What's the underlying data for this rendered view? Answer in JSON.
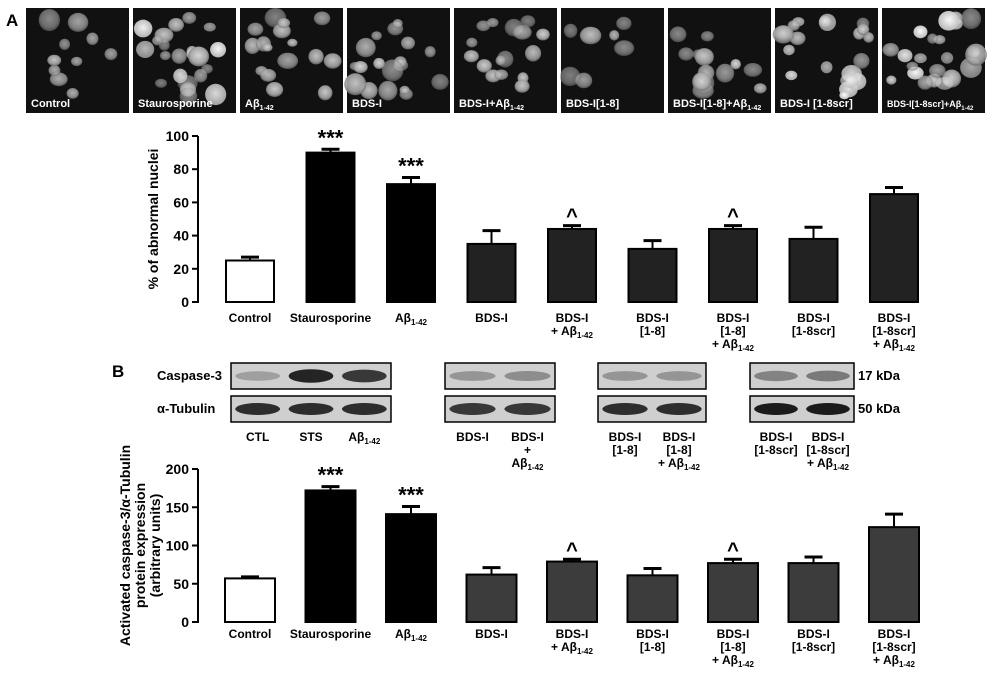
{
  "panel_a": {
    "panel_label": "A",
    "micrographs": [
      {
        "label_parts": [
          {
            "t": "Control"
          }
        ]
      },
      {
        "label_parts": [
          {
            "t": "Staurosporine"
          }
        ]
      },
      {
        "label_parts": [
          {
            "t": "Aβ"
          },
          {
            "t": "1-42",
            "sub": true
          }
        ]
      },
      {
        "label_parts": [
          {
            "t": "BDS-I"
          }
        ]
      },
      {
        "label_parts": [
          {
            "t": "BDS-I+Aβ"
          },
          {
            "t": "1-42",
            "sub": true
          }
        ]
      },
      {
        "label_parts": [
          {
            "t": "BDS-I[1-8]"
          }
        ]
      },
      {
        "label_parts": [
          {
            "t": "BDS-I[1-8]+Aβ"
          },
          {
            "t": "1-42",
            "sub": true
          }
        ]
      },
      {
        "label_parts": [
          {
            "t": "BDS-I  [1-8scr]"
          }
        ]
      },
      {
        "label_parts": [
          {
            "t": "BDS-I[1-8scr]+Aβ"
          },
          {
            "t": "1-42",
            "sub": true
          }
        ]
      }
    ]
  },
  "panel_b": {
    "panel_label": "B",
    "blot_row_labels": [
      "Caspase-3",
      "α-Tubulin"
    ],
    "blot_mw_labels": [
      "17 kDa",
      "50 kDa"
    ],
    "blot_lanes": [
      {
        "lines": [
          [
            {
              "t": "CTL"
            }
          ]
        ]
      },
      {
        "lines": [
          [
            {
              "t": "STS"
            }
          ]
        ]
      },
      {
        "lines": [
          [
            {
              "t": "Aβ"
            },
            {
              "t": "1-42",
              "sub": true
            }
          ]
        ]
      },
      {
        "lines": [
          [
            {
              "t": "BDS-I"
            }
          ]
        ]
      },
      {
        "lines": [
          [
            {
              "t": "BDS-I"
            }
          ],
          [
            {
              "t": "+"
            }
          ],
          [
            {
              "t": "Aβ"
            },
            {
              "t": "1-42",
              "sub": true
            }
          ]
        ]
      },
      {
        "lines": [
          [
            {
              "t": "BDS-I"
            }
          ],
          [
            {
              "t": "[1-8]"
            }
          ]
        ]
      },
      {
        "lines": [
          [
            {
              "t": "BDS-I"
            }
          ],
          [
            {
              "t": "[1-8]"
            }
          ],
          [
            {
              "t": "+ Aβ"
            },
            {
              "t": "1-42",
              "sub": true
            }
          ]
        ]
      },
      {
        "lines": [
          [
            {
              "t": "BDS-I"
            }
          ],
          [
            {
              "t": "[1-8scr]"
            }
          ]
        ]
      },
      {
        "lines": [
          [
            {
              "t": "BDS-I"
            }
          ],
          [
            {
              "t": "[1-8scr]"
            }
          ],
          [
            {
              "t": "+ Aβ"
            },
            {
              "t": "1-42",
              "sub": true
            }
          ]
        ]
      }
    ]
  },
  "chart_data": [
    {
      "type": "bar",
      "ylabel": "% of abnormal nuclei",
      "ylim": [
        0,
        100
      ],
      "yticks": [
        0,
        20,
        40,
        60,
        80,
        100
      ],
      "grid": false,
      "categories": [
        {
          "lines": [
            [
              {
                "t": "Control"
              }
            ]
          ]
        },
        {
          "lines": [
            [
              {
                "t": "Staurosporine"
              }
            ]
          ]
        },
        {
          "lines": [
            [
              {
                "t": "Aβ"
              },
              {
                "t": "1-42",
                "sub": true
              }
            ]
          ]
        },
        {
          "lines": [
            [
              {
                "t": "BDS-I"
              }
            ]
          ]
        },
        {
          "lines": [
            [
              {
                "t": "BDS-I"
              }
            ],
            [
              {
                "t": "+ Aβ"
              },
              {
                "t": "1-42",
                "sub": true
              }
            ]
          ]
        },
        {
          "lines": [
            [
              {
                "t": "BDS-I"
              }
            ],
            [
              {
                "t": "[1-8]"
              }
            ]
          ]
        },
        {
          "lines": [
            [
              {
                "t": "BDS-I"
              }
            ],
            [
              {
                "t": "[1-8]"
              }
            ],
            [
              {
                "t": "+ Aβ"
              },
              {
                "t": "1-42",
                "sub": true
              }
            ]
          ]
        },
        {
          "lines": [
            [
              {
                "t": "BDS-I"
              }
            ],
            [
              {
                "t": "[1-8scr]"
              }
            ]
          ]
        },
        {
          "lines": [
            [
              {
                "t": "BDS-I"
              }
            ],
            [
              {
                "t": "[1-8scr]"
              }
            ],
            [
              {
                "t": "+ Aβ"
              },
              {
                "t": "1-42",
                "sub": true
              }
            ]
          ]
        }
      ],
      "values": [
        25,
        90,
        71,
        35,
        44,
        32,
        44,
        38,
        65
      ],
      "errors": [
        2,
        2,
        4,
        8,
        2,
        5,
        2,
        7,
        4
      ],
      "annotations": [
        "",
        "***",
        "***",
        "",
        "^",
        "",
        "^",
        "",
        ""
      ],
      "bar_colors": [
        "#ffffff",
        "#000000",
        "#000000",
        "#222222",
        "#222222",
        "#222222",
        "#222222",
        "#222222",
        "#222222"
      ]
    },
    {
      "type": "bar",
      "ylabel_lines": [
        "Activated caspase-3/α-Tubulin",
        "protein expression",
        "(arbitrary units)"
      ],
      "ylim": [
        0,
        200
      ],
      "yticks": [
        0,
        50,
        100,
        150,
        200
      ],
      "grid": false,
      "categories": [
        {
          "lines": [
            [
              {
                "t": "Control"
              }
            ]
          ]
        },
        {
          "lines": [
            [
              {
                "t": "Staurosporine"
              }
            ]
          ]
        },
        {
          "lines": [
            [
              {
                "t": "Aβ"
              },
              {
                "t": "1-42",
                "sub": true
              }
            ]
          ]
        },
        {
          "lines": [
            [
              {
                "t": "BDS-I"
              }
            ]
          ]
        },
        {
          "lines": [
            [
              {
                "t": "BDS-I"
              }
            ],
            [
              {
                "t": "+ Aβ"
              },
              {
                "t": "1-42",
                "sub": true
              }
            ]
          ]
        },
        {
          "lines": [
            [
              {
                "t": "BDS-I"
              }
            ],
            [
              {
                "t": "[1-8]"
              }
            ]
          ]
        },
        {
          "lines": [
            [
              {
                "t": "BDS-I"
              }
            ],
            [
              {
                "t": "[1-8]"
              }
            ],
            [
              {
                "t": "+ Aβ"
              },
              {
                "t": "1-42",
                "sub": true
              }
            ]
          ]
        },
        {
          "lines": [
            [
              {
                "t": "BDS-I"
              }
            ],
            [
              {
                "t": "[1-8scr]"
              }
            ]
          ]
        },
        {
          "lines": [
            [
              {
                "t": "BDS-I"
              }
            ],
            [
              {
                "t": "[1-8scr]"
              }
            ],
            [
              {
                "t": "+ Aβ"
              },
              {
                "t": "1-42",
                "sub": true
              }
            ]
          ]
        }
      ],
      "values": [
        57,
        172,
        141,
        62,
        79,
        61,
        77,
        77,
        124
      ],
      "errors": [
        2,
        5,
        10,
        9,
        3,
        9,
        5,
        8,
        17
      ],
      "annotations": [
        "",
        "***",
        "***",
        "",
        "^",
        "",
        "^",
        "",
        ""
      ],
      "bar_colors": [
        "#ffffff",
        "#000000",
        "#000000",
        "#3c3c3c",
        "#3c3c3c",
        "#3c3c3c",
        "#3c3c3c",
        "#3c3c3c",
        "#3c3c3c"
      ]
    }
  ]
}
